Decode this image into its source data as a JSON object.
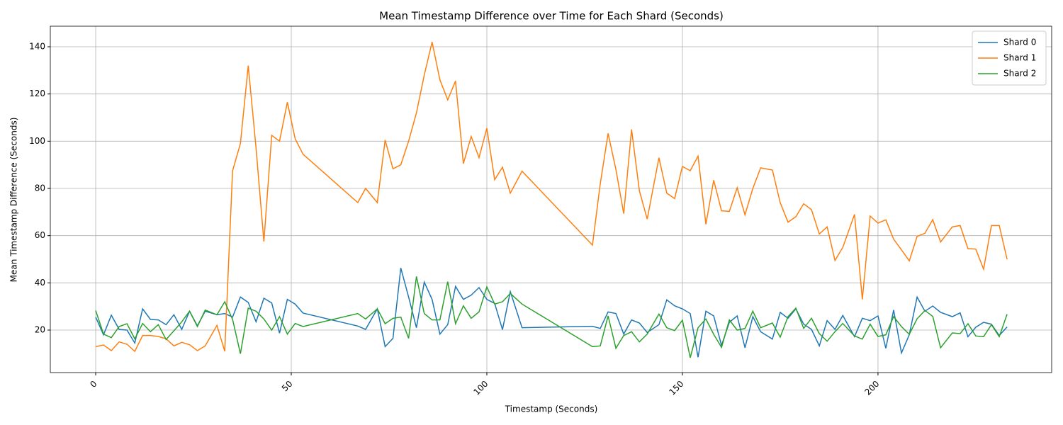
{
  "chart_data": {
    "type": "line",
    "title": "Mean Timestamp Difference over Time for Each Shard (Seconds)",
    "xlabel": "Timestamp (Seconds)",
    "ylabel": "Mean Timestamp Difference (Seconds)",
    "x": [
      0,
      2,
      4,
      6,
      8,
      10,
      12,
      14,
      16,
      18,
      20,
      22,
      24,
      26,
      28,
      31,
      33,
      35,
      37,
      39,
      41,
      43,
      45,
      47,
      49,
      51,
      53,
      67,
      69,
      72,
      74,
      76,
      78,
      80,
      82,
      84,
      86,
      88,
      90,
      92,
      94,
      96,
      98,
      100,
      102,
      104,
      106,
      109,
      127,
      129,
      131,
      133,
      135,
      137,
      139,
      141,
      144,
      146,
      148,
      150,
      152,
      154,
      156,
      158,
      160,
      162,
      164,
      166,
      168,
      170,
      173,
      175,
      177,
      179,
      181,
      183,
      185,
      187,
      189,
      191,
      194,
      196,
      198,
      200,
      202,
      204,
      206,
      208,
      210,
      212,
      214,
      216,
      219,
      221,
      223,
      225,
      227,
      229,
      231,
      233
    ],
    "series": [
      {
        "name": "Shard 0",
        "color": "#1f77b4",
        "values": [
          25.5,
          18,
          26.3,
          20.3,
          20,
          14.5,
          29,
          24.5,
          24.3,
          22.3,
          26.5,
          20.3,
          28,
          21.8,
          28,
          26.5,
          27,
          25.5,
          34,
          31.7,
          23.5,
          33.5,
          31.5,
          18.7,
          33,
          31,
          27.2,
          21.7,
          20.3,
          29,
          13,
          16.5,
          46.3,
          34,
          21,
          40.3,
          33,
          18.3,
          22.3,
          38.5,
          33,
          34.8,
          38,
          33,
          31.3,
          20.2,
          36.3,
          21,
          21.6,
          20.7,
          27.7,
          27,
          18.3,
          24.3,
          23,
          19,
          22.3,
          32.8,
          30.3,
          29,
          27,
          8.5,
          28,
          26,
          13.5,
          23.3,
          26,
          12.5,
          25.7,
          19.3,
          16.2,
          27.5,
          25,
          29,
          22.5,
          20.3,
          13.3,
          24,
          20.3,
          26.2,
          17.2,
          25,
          24,
          26,
          12.3,
          28.5,
          10.3,
          18,
          34,
          28,
          30.2,
          27.5,
          25.7,
          27.3,
          17.2,
          21.2,
          23.3,
          22.5,
          17.7,
          21.3
        ]
      },
      {
        "name": "Shard 1",
        "color": "#ff7f0e",
        "values": [
          13,
          13.7,
          11.3,
          15,
          14,
          11,
          17.7,
          17.7,
          17.3,
          16.3,
          13.3,
          14.8,
          13.8,
          11.3,
          13.3,
          22,
          11,
          87.5,
          99,
          132,
          97,
          57.5,
          102.5,
          100,
          116.5,
          101,
          94.5,
          74,
          80,
          74,
          100.5,
          88.3,
          90,
          100,
          112,
          128,
          142,
          126,
          117.5,
          125.5,
          90.5,
          102,
          93,
          105.5,
          83.7,
          89,
          78,
          87.3,
          56,
          82,
          103.3,
          88,
          69.3,
          105,
          79,
          67,
          93,
          78,
          75.7,
          89.3,
          87.5,
          93.7,
          64.8,
          83.5,
          70.5,
          70.3,
          80.3,
          68.8,
          80,
          88.7,
          87.8,
          74,
          65.7,
          68,
          73.5,
          71,
          60.7,
          63.7,
          49.5,
          55,
          69,
          33,
          68.3,
          65.3,
          66.7,
          58.5,
          54,
          49.3,
          59.7,
          61,
          66.8,
          57.3,
          63.7,
          64.3,
          54.5,
          54.3,
          45.8,
          64.3,
          64.3,
          50
        ]
      },
      {
        "name": "Shard 2",
        "color": "#2ca02c",
        "values": [
          28.3,
          18.3,
          16.8,
          21.5,
          22.7,
          16.3,
          22.8,
          19.3,
          22.3,
          16,
          19.7,
          23.5,
          28,
          21.5,
          28.5,
          26.5,
          32,
          24.5,
          10,
          29.3,
          28,
          24.7,
          20,
          25.7,
          18.3,
          22.8,
          21.5,
          27,
          24.7,
          29,
          22.7,
          25,
          25.5,
          16.5,
          42.7,
          27,
          24.3,
          24.3,
          40.5,
          22.7,
          30.3,
          25,
          27.7,
          38.3,
          31,
          32,
          35.5,
          31,
          13,
          13.3,
          26,
          12.3,
          17.7,
          19.3,
          15,
          18.3,
          26.8,
          21,
          19.8,
          24.2,
          8.3,
          21,
          24.7,
          18.2,
          12.7,
          24.3,
          20,
          20.7,
          28,
          21,
          23,
          17,
          25.7,
          29.3,
          20.7,
          25,
          18.5,
          15.3,
          19.3,
          22.8,
          17.5,
          16.2,
          22.5,
          17.3,
          18,
          25.7,
          21.5,
          18.2,
          24.8,
          28.3,
          25.8,
          12.5,
          18.8,
          18.5,
          22.7,
          17.5,
          17.2,
          22.3,
          17.2,
          26.7
        ]
      }
    ],
    "xlim": [
      -11.6,
      244.4
    ],
    "ylim": [
      2,
      148.7
    ],
    "xticks": [
      0,
      50,
      100,
      150,
      200
    ],
    "yticks": [
      20,
      40,
      60,
      80,
      100,
      120,
      140
    ],
    "grid": true,
    "legend": "upper right"
  }
}
